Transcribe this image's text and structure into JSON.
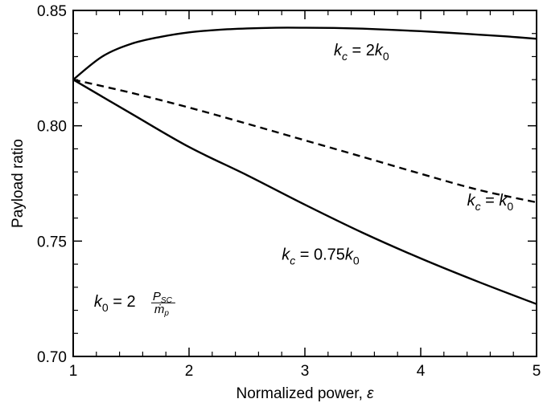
{
  "chart_data": {
    "type": "line",
    "title": "",
    "xlabel": "Normalized power, ",
    "xlabel_symbol": "ε",
    "ylabel": "Payload ratio",
    "xlim": [
      1,
      5
    ],
    "ylim": [
      0.7,
      0.85
    ],
    "xticks": [
      "1",
      "2",
      "3",
      "4",
      "5"
    ],
    "yticks": [
      "0.70",
      "0.75",
      "0.80",
      "0.85"
    ],
    "grid": false,
    "series": [
      {
        "line_style": "solid",
        "x": [
          1.0,
          1.25,
          1.5,
          1.75,
          2.0,
          2.25,
          2.5,
          2.75,
          3.0,
          3.25,
          3.5,
          3.75,
          4.0,
          4.25,
          4.5,
          4.75,
          5.0
        ],
        "y": [
          0.82,
          0.83,
          0.8355,
          0.8385,
          0.8405,
          0.8416,
          0.8422,
          0.8425,
          0.8425,
          0.8424,
          0.8421,
          0.8416,
          0.841,
          0.8403,
          0.8395,
          0.8387,
          0.8377
        ]
      },
      {
        "line_style": "dashed",
        "x": [
          1.0,
          1.5,
          2.0,
          2.5,
          3.0,
          3.5,
          4.0,
          4.5,
          5.0
        ],
        "y": [
          0.82,
          0.8143,
          0.8079,
          0.8009,
          0.7937,
          0.7865,
          0.7792,
          0.7722,
          0.7668
        ]
      },
      {
        "line_style": "solid",
        "x": [
          1.0,
          1.5,
          2.0,
          2.5,
          3.0,
          3.5,
          4.0,
          4.5,
          5.0
        ],
        "y": [
          0.82,
          0.8053,
          0.7908,
          0.7786,
          0.7658,
          0.7536,
          0.7425,
          0.7323,
          0.7227
        ]
      }
    ],
    "annotations": [
      {
        "kind": "kc",
        "sub": "c",
        "eq": " = 2",
        "k": "k",
        "sub2": "0",
        "x": 3.25,
        "y": 0.8305
      },
      {
        "kind": "kc",
        "sub": "c",
        "eq": " = ",
        "k": "k",
        "sub2": "0",
        "x": 4.4,
        "y": 0.7655
      },
      {
        "kind": "kc",
        "sub": "c",
        "eq": " = 0.75",
        "k": "k",
        "sub2": "0",
        "x": 2.8,
        "y": 0.742
      },
      {
        "kind": "k0",
        "lhs": "k",
        "lhs_sub": "0",
        "eq": " = 2",
        "num": "P",
        "num_sub": "SC",
        "den": "ṁ",
        "den_sub": "p",
        "x": 1.18,
        "y": 0.7215
      }
    ]
  }
}
